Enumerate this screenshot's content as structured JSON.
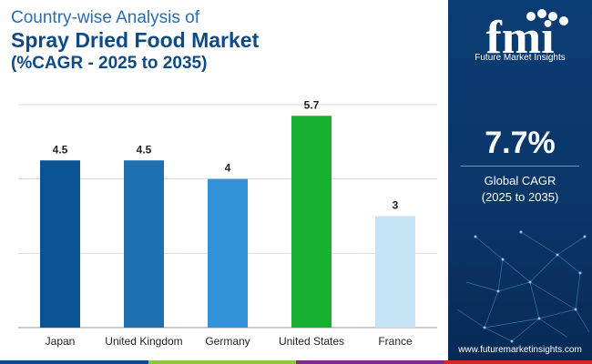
{
  "header": {
    "line1": "Country-wise Analysis of",
    "line2": "Spray Dried Food Market",
    "line3": "(%CAGR - 2025 to 2035)"
  },
  "chart_data": {
    "type": "bar",
    "title": "Spray Dried Food Market",
    "subtitle": "(%CAGR - 2025 to 2035)",
    "categories": [
      "Japan",
      "United Kingdom",
      "Germany",
      "United States",
      "France"
    ],
    "values": [
      4.5,
      4.5,
      4,
      5.7,
      3
    ],
    "value_labels": [
      "4.5",
      "4.5",
      "4",
      "5.7",
      "3"
    ],
    "colors": [
      "#0a5496",
      "#1f70b0",
      "#3393d9",
      "#18b030",
      "#c6e2f5"
    ],
    "ylim": [
      0,
      6
    ],
    "grid": true,
    "xlabel": "",
    "ylabel": ""
  },
  "side_panel": {
    "logo_text": "fmi",
    "brand": "Future Market Insights",
    "cagr_value": "7.7%",
    "cagr_label_line1": "Global CAGR",
    "cagr_label_line2": "(2025 to 2035)",
    "website": "www.futuremarketinsights.com"
  },
  "bottom_bar_colors": [
    "#0d4a86",
    "#8dc63f",
    "#7b2e8e",
    "#d9232d"
  ]
}
